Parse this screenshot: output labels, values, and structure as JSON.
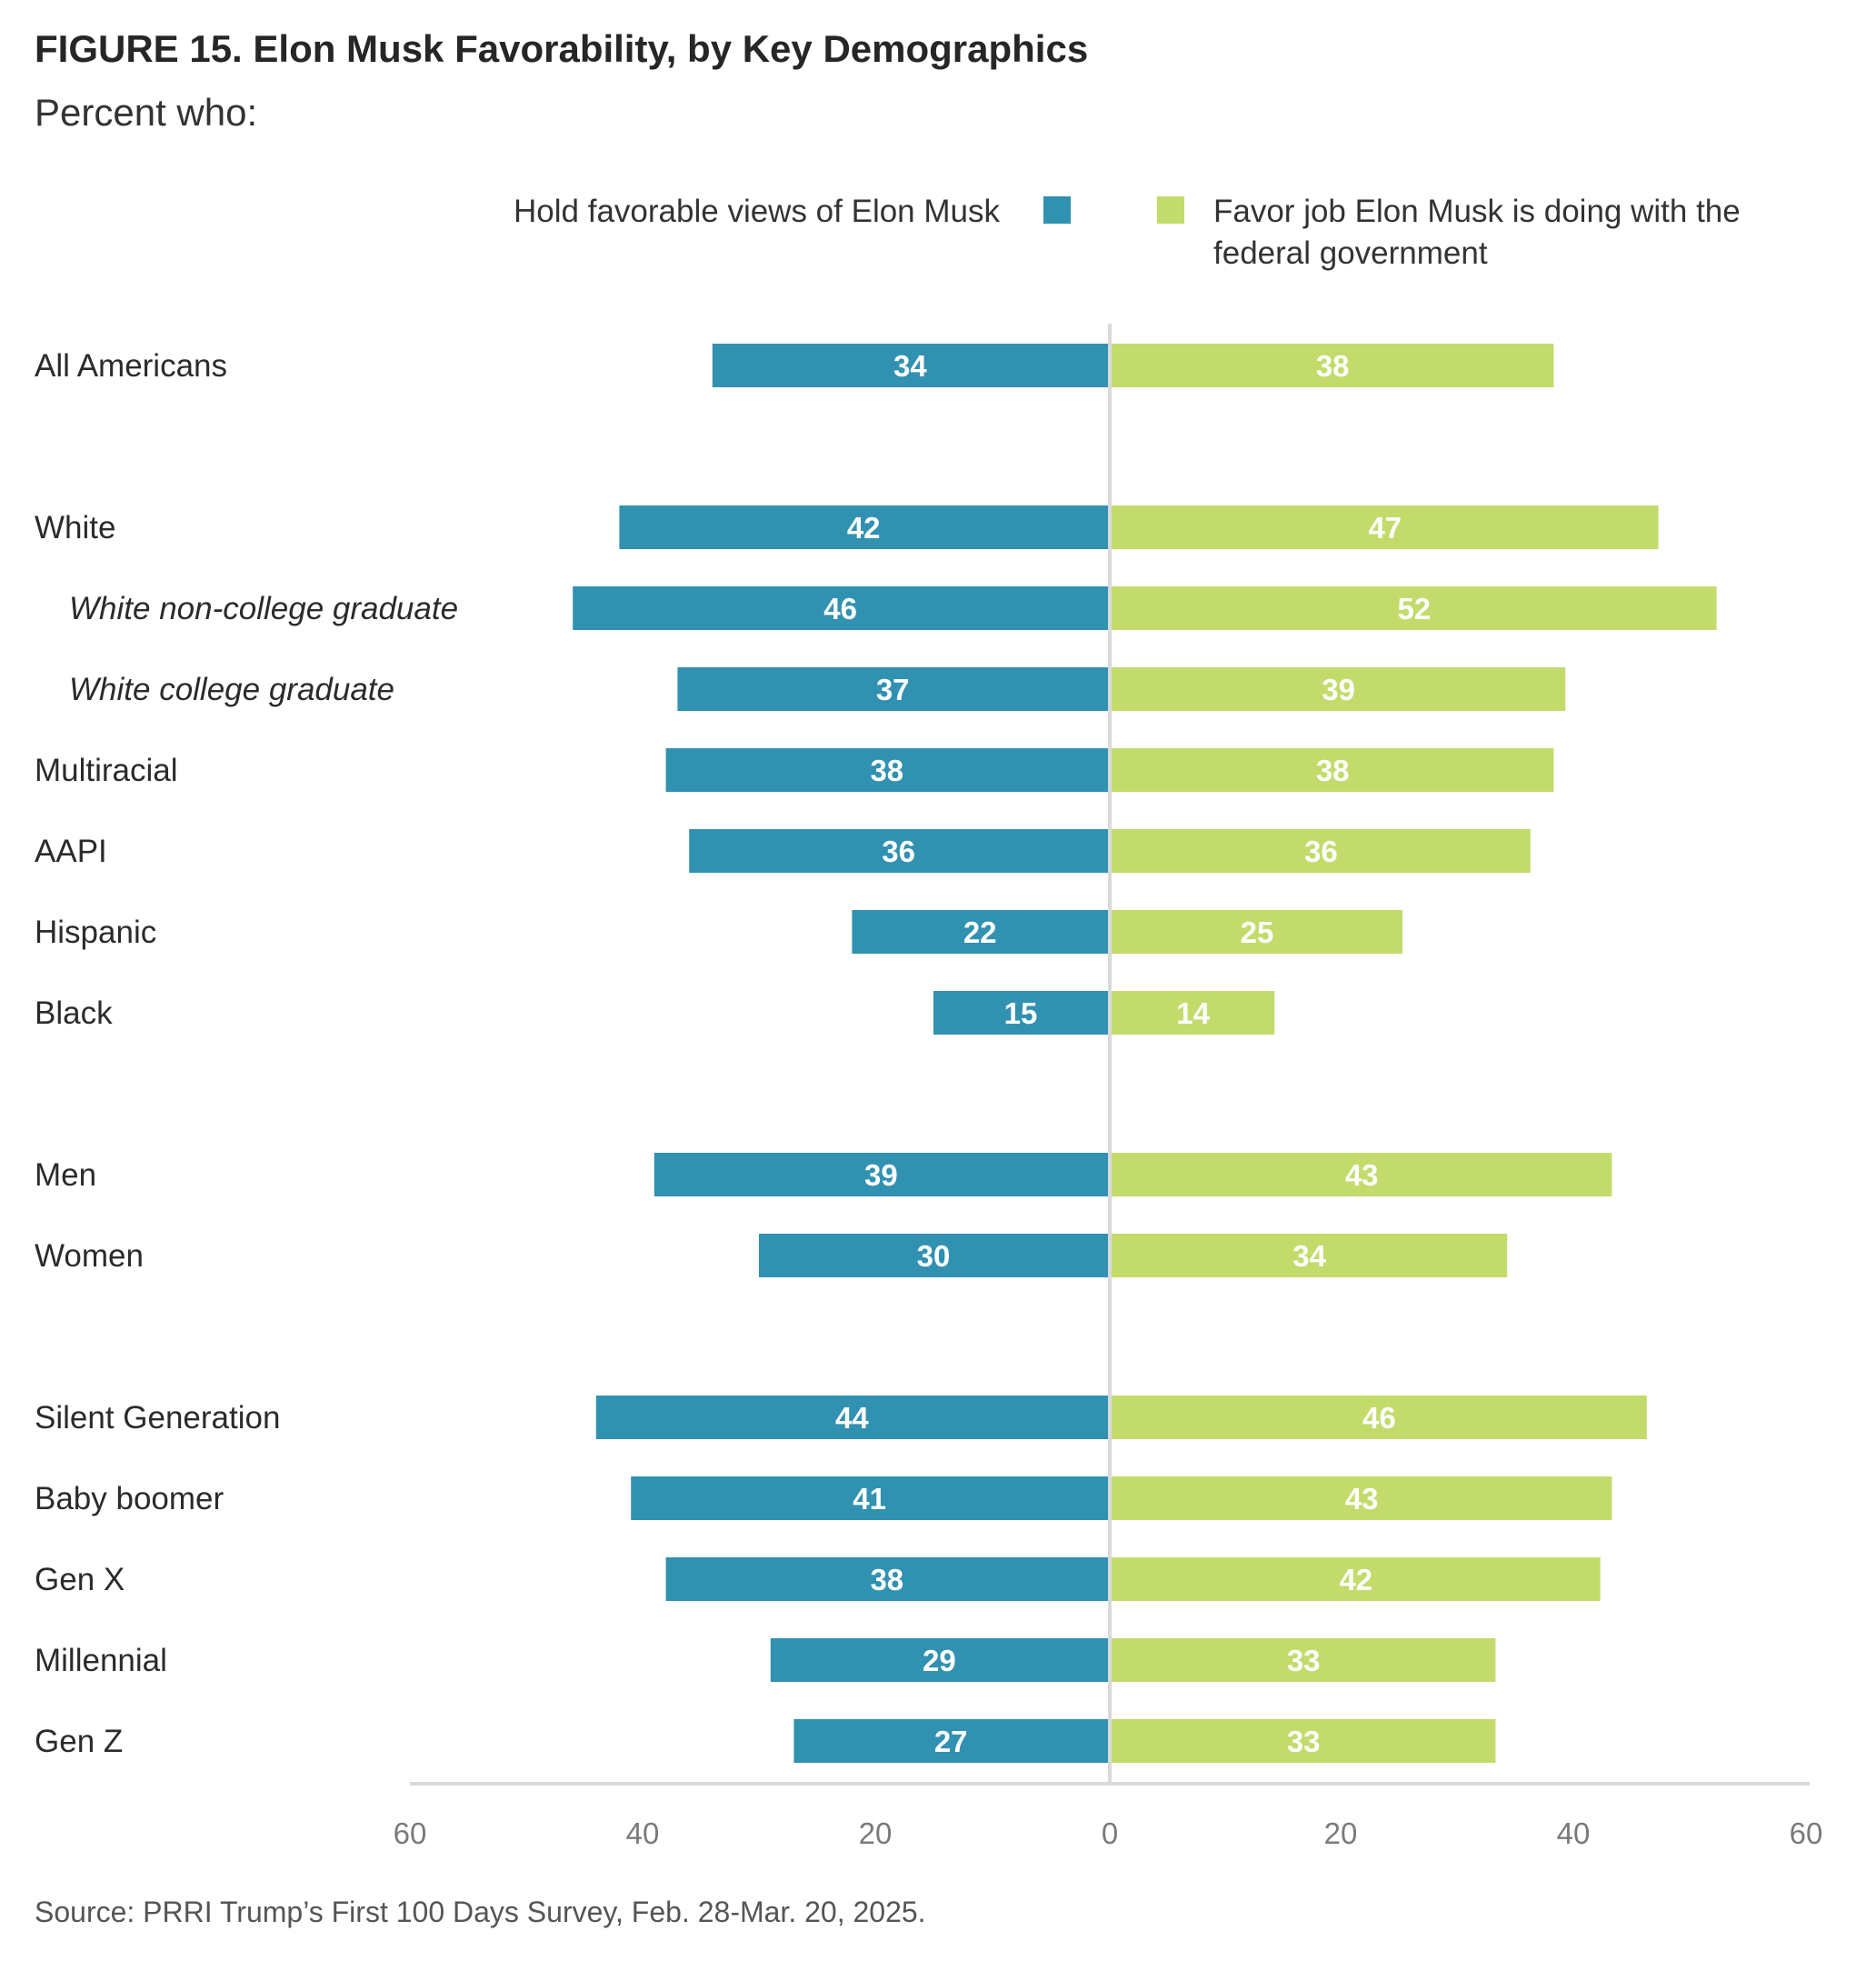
{
  "title": "FIGURE 15.  Elon Musk Favorability, by Key Demographics",
  "subtitle": "Percent who:",
  "source": "Source: PRRI Trump’s First 100 Days Survey, Feb. 28-Mar. 20, 2025.",
  "colors": {
    "favorable": "#3191b0",
    "job": "#c2db6b",
    "axis": "#d9d9d9",
    "label_on_bar": "#ffffff"
  },
  "chart_data": {
    "type": "bar",
    "orientation": "horizontal-diverging",
    "series": [
      {
        "name": "Hold favorable views of Elon Musk",
        "side": "left",
        "values": [
          34,
          42,
          46,
          37,
          38,
          36,
          22,
          15,
          39,
          30,
          44,
          41,
          38,
          29,
          27
        ]
      },
      {
        "name": "Favor job Elon Musk is doing with the federal government",
        "side": "right",
        "values": [
          38,
          47,
          52,
          39,
          38,
          36,
          25,
          14,
          43,
          34,
          46,
          43,
          42,
          33,
          33
        ]
      }
    ],
    "categories": [
      "All Americans",
      "White",
      "White non-college graduate",
      "White college graduate",
      "Multiracial",
      "AAPI",
      "Hispanic",
      "Black",
      "Men",
      "Women",
      "Silent Generation",
      "Baby boomer",
      "Gen X",
      "Millennial",
      "Gen Z"
    ],
    "category_italic": [
      false,
      false,
      true,
      true,
      false,
      false,
      false,
      false,
      false,
      false,
      false,
      false,
      false,
      false,
      false
    ],
    "groups": [
      [
        0
      ],
      [
        1,
        2,
        3,
        4,
        5,
        6,
        7
      ],
      [
        8,
        9
      ],
      [
        10,
        11,
        12,
        13,
        14
      ]
    ],
    "x_ticks": [
      "60",
      "40",
      "20",
      "0",
      "20",
      "40",
      "60"
    ],
    "xlim": [
      -60,
      60
    ],
    "legend": {
      "placement": "top"
    },
    "grid": false,
    "title": "",
    "xlabel": "",
    "ylabel": ""
  }
}
